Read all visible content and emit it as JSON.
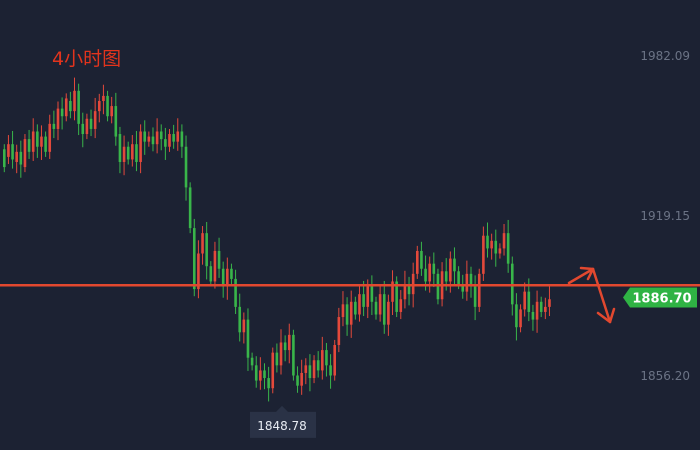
{
  "chart_data": {
    "type": "candlestick",
    "title": "4小时图",
    "y_axis": {
      "ticks": [
        "1982.09",
        "1919.15",
        "1856.20"
      ],
      "tick_values": [
        1982.09,
        1919.15,
        1856.2
      ],
      "range": [
        1846.0,
        1993.0
      ],
      "position": "right"
    },
    "current_price": {
      "value": 1886.7,
      "label": "1886.70"
    },
    "low_marker": {
      "value": 1848.78,
      "label": "1848.78"
    },
    "horizontal_line": {
      "value": 1891.5
    },
    "forecast_arrow": {
      "direction": "up-then-down"
    },
    "colors": {
      "up": "#e3493b",
      "down": "#39b54a",
      "line": "#e2482f",
      "price_tag": "#2fb344",
      "low_tag": "#2a3246"
    },
    "candles_open_close": [
      [
        1945,
        1938
      ],
      [
        1942,
        1947
      ],
      [
        1947,
        1941
      ],
      [
        1940,
        1944
      ],
      [
        1944,
        1939
      ],
      [
        1938,
        1949
      ],
      [
        1949,
        1944
      ],
      [
        1944,
        1952
      ],
      [
        1952,
        1946
      ],
      [
        1946,
        1950
      ],
      [
        1950,
        1944
      ],
      [
        1944,
        1955
      ],
      [
        1955,
        1953
      ],
      [
        1953,
        1961
      ],
      [
        1961,
        1958
      ],
      [
        1958,
        1965
      ],
      [
        1964,
        1960
      ],
      [
        1960,
        1968
      ],
      [
        1968,
        1955
      ],
      [
        1955,
        1951
      ],
      [
        1951,
        1957
      ],
      [
        1957,
        1953
      ],
      [
        1953,
        1960
      ],
      [
        1960,
        1964
      ],
      [
        1964,
        1966
      ],
      [
        1966,
        1958
      ],
      [
        1958,
        1962
      ],
      [
        1962,
        1950
      ],
      [
        1951,
        1940
      ],
      [
        1940,
        1946
      ],
      [
        1946,
        1941
      ],
      [
        1941,
        1947
      ],
      [
        1947,
        1940
      ],
      [
        1940,
        1952
      ],
      [
        1952,
        1948
      ],
      [
        1948,
        1950
      ],
      [
        1950,
        1947
      ],
      [
        1947,
        1952
      ],
      [
        1952,
        1949
      ],
      [
        1949,
        1946
      ],
      [
        1946,
        1951
      ],
      [
        1951,
        1948
      ],
      [
        1948,
        1952
      ],
      [
        1952,
        1946
      ],
      [
        1946,
        1930
      ],
      [
        1930,
        1914
      ],
      [
        1914,
        1890
      ],
      [
        1890,
        1904
      ],
      [
        1904,
        1912
      ],
      [
        1912,
        1899
      ],
      [
        1899,
        1893
      ],
      [
        1893,
        1905
      ],
      [
        1905,
        1898
      ],
      [
        1898,
        1891
      ],
      [
        1891,
        1898
      ],
      [
        1898,
        1894
      ],
      [
        1894,
        1883
      ],
      [
        1883,
        1873
      ],
      [
        1873,
        1878
      ],
      [
        1878,
        1863
      ],
      [
        1863,
        1860
      ],
      [
        1860,
        1854
      ],
      [
        1854,
        1858
      ],
      [
        1858,
        1855
      ],
      [
        1855,
        1851
      ],
      [
        1851,
        1865
      ],
      [
        1865,
        1860
      ],
      [
        1860,
        1869
      ],
      [
        1869,
        1866
      ],
      [
        1866,
        1872
      ],
      [
        1872,
        1856
      ],
      [
        1856,
        1852
      ],
      [
        1852,
        1857
      ],
      [
        1857,
        1860
      ],
      [
        1860,
        1855
      ],
      [
        1855,
        1862
      ],
      [
        1862,
        1858
      ],
      [
        1858,
        1866
      ],
      [
        1866,
        1860
      ],
      [
        1860,
        1856
      ],
      [
        1856,
        1868
      ],
      [
        1868,
        1879
      ],
      [
        1879,
        1884
      ],
      [
        1884,
        1876
      ],
      [
        1876,
        1885
      ],
      [
        1885,
        1880
      ],
      [
        1880,
        1888
      ],
      [
        1888,
        1883
      ],
      [
        1883,
        1891
      ],
      [
        1891,
        1885
      ],
      [
        1885,
        1880
      ],
      [
        1880,
        1888
      ],
      [
        1888,
        1876
      ],
      [
        1876,
        1885
      ],
      [
        1885,
        1893
      ],
      [
        1893,
        1881
      ],
      [
        1881,
        1886
      ],
      [
        1886,
        1892
      ],
      [
        1892,
        1888
      ],
      [
        1888,
        1896
      ],
      [
        1896,
        1905
      ],
      [
        1905,
        1898
      ],
      [
        1898,
        1893
      ],
      [
        1893,
        1900
      ],
      [
        1900,
        1896
      ],
      [
        1896,
        1886
      ],
      [
        1886,
        1897
      ],
      [
        1897,
        1893
      ],
      [
        1893,
        1902
      ],
      [
        1902,
        1897
      ],
      [
        1897,
        1892
      ],
      [
        1892,
        1889
      ],
      [
        1889,
        1896
      ],
      [
        1896,
        1891
      ],
      [
        1891,
        1883
      ],
      [
        1883,
        1896
      ],
      [
        1896,
        1911
      ],
      [
        1911,
        1906
      ],
      [
        1906,
        1909
      ],
      [
        1909,
        1904
      ],
      [
        1904,
        1906
      ],
      [
        1906,
        1912
      ],
      [
        1912,
        1900
      ],
      [
        1900,
        1884
      ],
      [
        1884,
        1875
      ],
      [
        1875,
        1882
      ],
      [
        1882,
        1889
      ],
      [
        1889,
        1881
      ],
      [
        1881,
        1878
      ],
      [
        1878,
        1885
      ],
      [
        1885,
        1881
      ],
      [
        1881,
        1883
      ],
      [
        1883,
        1886
      ]
    ]
  }
}
